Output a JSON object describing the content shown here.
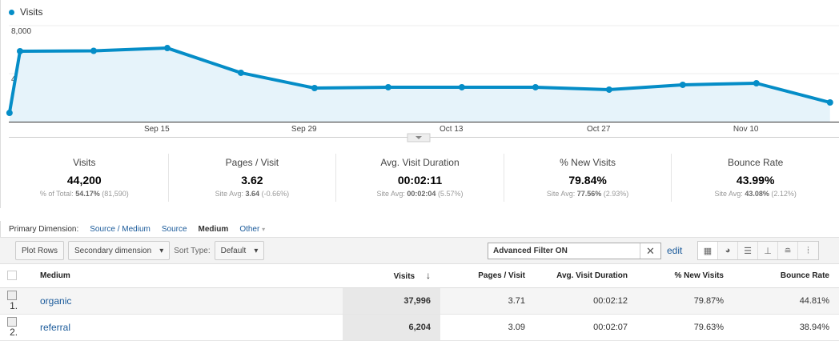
{
  "chart_data": {
    "type": "area",
    "series": [
      {
        "name": "Visits",
        "color": "#058dc7",
        "points": [
          {
            "x": "Sep 1",
            "y": 730
          },
          {
            "x": "Sep 2",
            "y": 5870
          },
          {
            "x": "Sep 9",
            "y": 5900
          },
          {
            "x": "Sep 16",
            "y": 6130
          },
          {
            "x": "Sep 23",
            "y": 4070
          },
          {
            "x": "Sep 30",
            "y": 2800
          },
          {
            "x": "Oct 7",
            "y": 2870
          },
          {
            "x": "Oct 14",
            "y": 2870
          },
          {
            "x": "Oct 21",
            "y": 2870
          },
          {
            "x": "Oct 28",
            "y": 2670
          },
          {
            "x": "Nov 4",
            "y": 3070
          },
          {
            "x": "Nov 11",
            "y": 3200
          },
          {
            "x": "Nov 18",
            "y": 1600
          }
        ]
      }
    ],
    "x_ticks": [
      "Sep 15",
      "Sep 29",
      "Oct 13",
      "Oct 27",
      "Nov 10"
    ],
    "y_ticks": [
      "8,000",
      "4,000"
    ],
    "ylim": [
      0,
      8000
    ],
    "grid": true,
    "legend": "top-left"
  },
  "scorecards": [
    {
      "title": "Visits",
      "value": "44,200",
      "sub_label": "% of Total:",
      "sub_bold": "54.17%",
      "sub_rest": "(81,590)"
    },
    {
      "title": "Pages / Visit",
      "value": "3.62",
      "sub_label": "Site Avg:",
      "sub_bold": "3.64",
      "sub_rest": "(-0.66%)"
    },
    {
      "title": "Avg. Visit Duration",
      "value": "00:02:11",
      "sub_label": "Site Avg:",
      "sub_bold": "00:02:04",
      "sub_rest": "(5.57%)"
    },
    {
      "title": "% New Visits",
      "value": "79.84%",
      "sub_label": "Site Avg:",
      "sub_bold": "77.56%",
      "sub_rest": "(2.93%)"
    },
    {
      "title": "Bounce Rate",
      "value": "43.99%",
      "sub_label": "Site Avg:",
      "sub_bold": "43.08%",
      "sub_rest": "(2.12%)"
    }
  ],
  "dimension": {
    "label": "Primary Dimension:",
    "source_medium": "Source / Medium",
    "source": "Source",
    "medium": "Medium",
    "other": "Other"
  },
  "toolbar": {
    "plot_rows": "Plot Rows",
    "secondary": "Secondary dimension",
    "sort_label": "Sort Type:",
    "sort_value": "Default",
    "filter_value": "Advanced Filter ON",
    "edit": "edit"
  },
  "table": {
    "headers": [
      "Medium",
      "Visits",
      "Pages / Visit",
      "Avg. Visit Duration",
      "% New Visits",
      "Bounce Rate"
    ],
    "sort_icon": "arrow-down",
    "rows": [
      {
        "num": "1.",
        "medium": "organic",
        "visits": "37,996",
        "pages": "3.71",
        "duration": "00:02:12",
        "new": "79.87%",
        "bounce": "44.81%"
      },
      {
        "num": "2.",
        "medium": "referral",
        "visits": "6,204",
        "pages": "3.09",
        "duration": "00:02:07",
        "new": "79.63%",
        "bounce": "38.94%"
      }
    ]
  }
}
